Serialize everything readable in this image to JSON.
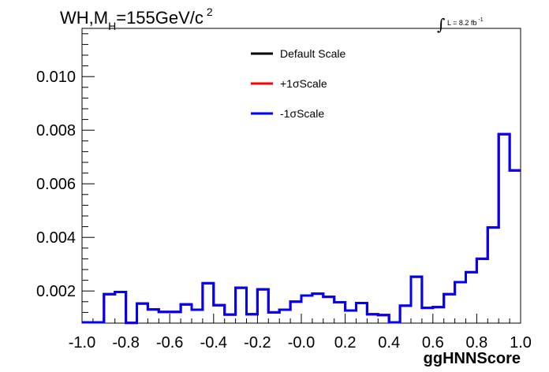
{
  "chart_data": {
    "type": "line",
    "title": {
      "prefix": "WH,M",
      "subscript": "H",
      "value": "=155GeV/c",
      "superscript": "2"
    },
    "luminosity": {
      "text": "L = 8.2 fb",
      "superscript": "-1"
    },
    "xlabel": "ggHNNScore",
    "ylabel": "",
    "xlim": [
      -1.0,
      1.0
    ],
    "ylim": [
      0.0008,
      0.0118
    ],
    "x_ticks": [
      "-1.0",
      "-0.8",
      "-0.6",
      "-0.4",
      "-0.2",
      "-0.0",
      "0.2",
      "0.4",
      "0.6",
      "0.8",
      "1.0"
    ],
    "y_ticks": [
      "0.002",
      "0.004",
      "0.006",
      "0.008",
      "0.010"
    ],
    "bin_edges": [
      -1.0,
      -0.95,
      -0.9,
      -0.85,
      -0.8,
      -0.75,
      -0.7,
      -0.65,
      -0.6,
      -0.55,
      -0.5,
      -0.45,
      -0.4,
      -0.35,
      -0.3,
      -0.25,
      -0.2,
      -0.15,
      -0.1,
      -0.05,
      0.0,
      0.05,
      0.1,
      0.15,
      0.2,
      0.25,
      0.3,
      0.35,
      0.4,
      0.45,
      0.5,
      0.55,
      0.6,
      0.65,
      0.7,
      0.75,
      0.8,
      0.85,
      0.9,
      0.95,
      1.0
    ],
    "series": [
      {
        "name": "Default Scale",
        "color": "#000000",
        "values": [
          0.00083,
          0.00083,
          0.00188,
          0.00196,
          0.00081,
          0.00153,
          0.00131,
          0.00122,
          0.00122,
          0.0015,
          0.0013,
          0.00229,
          0.00147,
          0.00112,
          0.00212,
          0.00113,
          0.00206,
          0.0012,
          0.0013,
          0.0016,
          0.00183,
          0.0019,
          0.00178,
          0.00158,
          0.00127,
          0.00155,
          0.00113,
          0.0011,
          0.00083,
          0.00145,
          0.00253,
          0.00137,
          0.0014,
          0.00188,
          0.00233,
          0.0027,
          0.0032,
          0.00437,
          0.00785,
          0.0065
        ]
      },
      {
        "name": "+1σScale",
        "color": "#ff0000",
        "values": [
          0.00083,
          0.00083,
          0.00188,
          0.00196,
          0.00081,
          0.00153,
          0.00131,
          0.00122,
          0.00122,
          0.0015,
          0.0013,
          0.00229,
          0.00147,
          0.00112,
          0.00212,
          0.00113,
          0.00206,
          0.0012,
          0.0013,
          0.0016,
          0.00183,
          0.0019,
          0.00178,
          0.00158,
          0.00127,
          0.00155,
          0.00113,
          0.0011,
          0.00083,
          0.00145,
          0.00253,
          0.00137,
          0.0014,
          0.00188,
          0.00233,
          0.0027,
          0.0032,
          0.00437,
          0.00785,
          0.0065
        ]
      },
      {
        "name": "-1σScale",
        "color": "#0000ff",
        "values": [
          0.00083,
          0.00083,
          0.00188,
          0.00196,
          0.00081,
          0.00153,
          0.00131,
          0.00122,
          0.00122,
          0.0015,
          0.0013,
          0.00229,
          0.00147,
          0.00112,
          0.00212,
          0.00113,
          0.00206,
          0.0012,
          0.0013,
          0.0016,
          0.00183,
          0.0019,
          0.00178,
          0.00158,
          0.00127,
          0.00155,
          0.00113,
          0.0011,
          0.00083,
          0.00145,
          0.00253,
          0.00137,
          0.0014,
          0.00188,
          0.00233,
          0.0027,
          0.0032,
          0.00437,
          0.00785,
          0.0065
        ]
      }
    ],
    "legend_position": "top-center",
    "grid": false
  }
}
